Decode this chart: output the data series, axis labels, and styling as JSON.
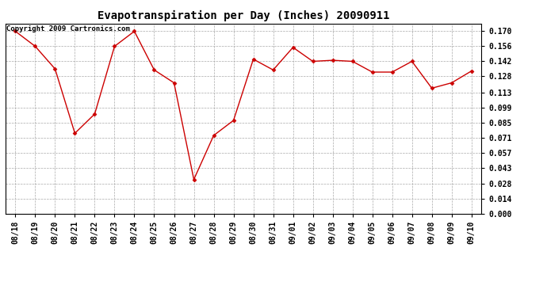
{
  "title": "Evapotranspiration per Day (Inches) 20090911",
  "copyright_text": "Copyright 2009 Cartronics.com",
  "x_labels": [
    "08/18",
    "08/19",
    "08/20",
    "08/21",
    "08/22",
    "08/23",
    "08/24",
    "08/25",
    "08/26",
    "08/27",
    "08/28",
    "08/29",
    "08/30",
    "08/31",
    "09/01",
    "09/02",
    "09/03",
    "09/04",
    "09/05",
    "09/06",
    "09/07",
    "09/08",
    "09/09",
    "09/10"
  ],
  "y_values": [
    0.17,
    0.156,
    0.135,
    0.075,
    0.093,
    0.156,
    0.17,
    0.134,
    0.122,
    0.032,
    0.073,
    0.087,
    0.144,
    0.134,
    0.155,
    0.142,
    0.143,
    0.142,
    0.132,
    0.132,
    0.142,
    0.117,
    0.122,
    0.133
  ],
  "y_ticks": [
    0.0,
    0.014,
    0.028,
    0.043,
    0.057,
    0.071,
    0.085,
    0.099,
    0.113,
    0.128,
    0.142,
    0.156,
    0.17
  ],
  "line_color": "#cc0000",
  "marker": "D",
  "marker_size": 2.5,
  "background_color": "#ffffff",
  "grid_color": "#aaaaaa",
  "title_fontsize": 10,
  "tick_fontsize": 7,
  "copyright_fontsize": 6.5,
  "ylim": [
    0.0,
    0.177
  ],
  "xlim": [
    -0.5,
    23.5
  ]
}
